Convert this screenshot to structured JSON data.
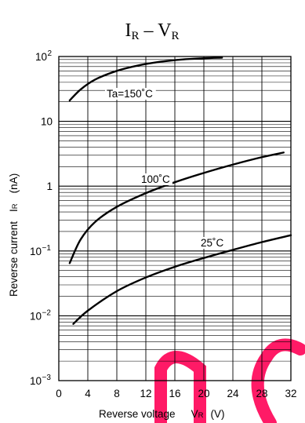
{
  "page": {
    "background": "#ffffff",
    "ink": "#000000",
    "watermark_color": "#ff1a66"
  },
  "chart_data": {
    "type": "line",
    "title": {
      "main": "I",
      "main_sub": "R",
      "dash": " – ",
      "second": "V",
      "second_sub": "R"
    },
    "xlabel": {
      "main": "Reverse voltage",
      "symbol": "V",
      "symbol_sub": "R",
      "unit": "(V)"
    },
    "ylabel": {
      "main": "Reverse current",
      "symbol": "I",
      "symbol_sub": "R",
      "unit": "(nA)"
    },
    "xlim": [
      0,
      32
    ],
    "ylim": [
      0.001,
      100
    ],
    "y_scale": "log",
    "grid": true,
    "x_ticks": [
      {
        "value": 0,
        "label": "0"
      },
      {
        "value": 4,
        "label": "4"
      },
      {
        "value": 8,
        "label": "8"
      },
      {
        "value": 12,
        "label": "12"
      },
      {
        "value": 16,
        "label": "16"
      },
      {
        "value": 20,
        "label": "20"
      },
      {
        "value": 24,
        "label": "24"
      },
      {
        "value": 28,
        "label": "28"
      },
      {
        "value": 32,
        "label": "32"
      }
    ],
    "y_ticks": [
      {
        "value": 0.001,
        "base": "10",
        "exp": "−3"
      },
      {
        "value": 0.01,
        "base": "10",
        "exp": "−2"
      },
      {
        "value": 0.1,
        "base": "10",
        "exp": "−1"
      },
      {
        "value": 1,
        "base": "1",
        "exp": ""
      },
      {
        "value": 10,
        "base": "10",
        "exp": ""
      },
      {
        "value": 100,
        "base": "10",
        "exp": "2"
      }
    ],
    "series": [
      {
        "name": "Ta=150˚C",
        "points": [
          [
            1.5,
            21
          ],
          [
            3,
            31
          ],
          [
            5,
            44
          ],
          [
            8,
            60
          ],
          [
            11,
            73
          ],
          [
            14,
            83
          ],
          [
            17,
            90
          ],
          [
            20,
            94
          ],
          [
            22.5,
            96
          ]
        ]
      },
      {
        "name": "100˚C",
        "points": [
          [
            1.5,
            0.065
          ],
          [
            3,
            0.15
          ],
          [
            5,
            0.28
          ],
          [
            8,
            0.48
          ],
          [
            12,
            0.78
          ],
          [
            16,
            1.15
          ],
          [
            20,
            1.6
          ],
          [
            24,
            2.15
          ],
          [
            28,
            2.8
          ],
          [
            31,
            3.3
          ]
        ]
      },
      {
        "name": "25˚C",
        "points": [
          [
            2,
            0.0075
          ],
          [
            4,
            0.012
          ],
          [
            8,
            0.024
          ],
          [
            12,
            0.039
          ],
          [
            16,
            0.057
          ],
          [
            20,
            0.078
          ],
          [
            24,
            0.104
          ],
          [
            28,
            0.137
          ],
          [
            32,
            0.175
          ]
        ]
      }
    ],
    "annotations": [
      {
        "text": "Ta=150˚C",
        "series": 0
      },
      {
        "text": "100˚C",
        "series": 1
      },
      {
        "text": "25˚C",
        "series": 2
      }
    ]
  }
}
